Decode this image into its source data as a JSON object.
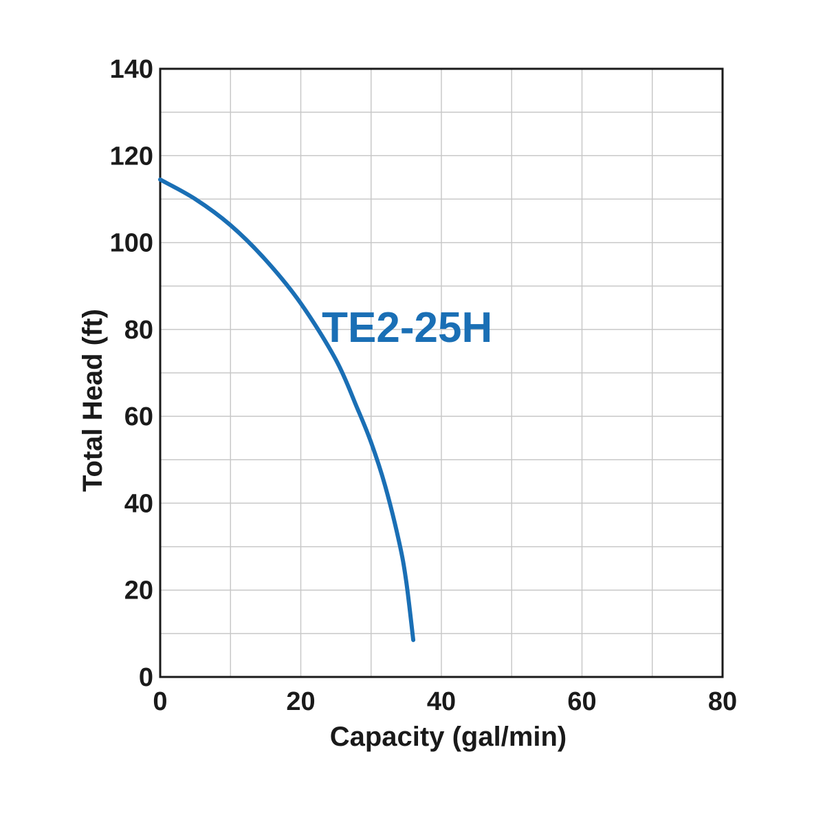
{
  "chart_data": {
    "type": "line",
    "xlabel": "Capacity (gal/min)",
    "ylabel": "Total Head (ft)",
    "xlim": [
      0,
      80
    ],
    "ylim": [
      0,
      140
    ],
    "x_ticks": [
      0,
      20,
      40,
      60,
      80
    ],
    "y_ticks": [
      0,
      20,
      40,
      60,
      80,
      100,
      120,
      140
    ],
    "x_minor_step": 10,
    "y_minor_step": 10,
    "grid": true,
    "series": [
      {
        "name": "TE2-25H",
        "color": "#1a6fb5",
        "x": [
          0,
          5,
          10,
          15,
          20,
          25,
          28,
          30,
          32,
          34,
          35,
          36
        ],
        "y": [
          114.5,
          110,
          104,
          96,
          86,
          73,
          62,
          54,
          44,
          31,
          22,
          8.5
        ]
      }
    ]
  }
}
